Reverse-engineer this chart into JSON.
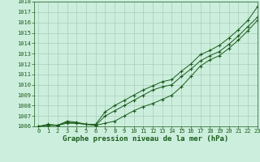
{
  "x": [
    0,
    1,
    2,
    3,
    4,
    5,
    6,
    7,
    8,
    9,
    10,
    11,
    12,
    13,
    14,
    15,
    16,
    17,
    18,
    19,
    20,
    21,
    22,
    23
  ],
  "series1": [
    1006.0,
    1006.1,
    1006.1,
    1006.3,
    1006.3,
    1006.2,
    1006.1,
    1006.3,
    1006.5,
    1007.0,
    1007.5,
    1007.9,
    1008.2,
    1008.6,
    1009.0,
    1009.8,
    1010.8,
    1011.8,
    1012.4,
    1012.8,
    1013.5,
    1014.3,
    1015.2,
    1016.2
  ],
  "series2": [
    1006.0,
    1006.1,
    1006.1,
    1006.4,
    1006.3,
    1006.2,
    1006.1,
    1007.0,
    1007.5,
    1008.0,
    1008.5,
    1009.0,
    1009.5,
    1009.8,
    1010.0,
    1010.8,
    1011.5,
    1012.3,
    1012.8,
    1013.2,
    1013.9,
    1014.7,
    1015.6,
    1016.5
  ],
  "series3": [
    1006.0,
    1006.2,
    1006.1,
    1006.5,
    1006.4,
    1006.2,
    1006.2,
    1007.4,
    1008.0,
    1008.5,
    1009.0,
    1009.5,
    1009.9,
    1010.3,
    1010.5,
    1011.3,
    1012.0,
    1012.9,
    1013.3,
    1013.8,
    1014.5,
    1015.3,
    1016.2,
    1017.5
  ],
  "ylim": [
    1006,
    1018
  ],
  "xlim": [
    -0.5,
    23
  ],
  "yticks": [
    1006,
    1007,
    1008,
    1009,
    1010,
    1011,
    1012,
    1013,
    1014,
    1015,
    1016,
    1017,
    1018
  ],
  "xticks": [
    0,
    1,
    2,
    3,
    4,
    5,
    6,
    7,
    8,
    9,
    10,
    11,
    12,
    13,
    14,
    15,
    16,
    17,
    18,
    19,
    20,
    21,
    22,
    23
  ],
  "line_color": "#1a5c1a",
  "bg_color": "#cceedd",
  "grid_color": "#aaccbb",
  "xlabel": "Graphe pression niveau de la mer (hPa)",
  "xlabel_color": "#1a5c1a",
  "tick_color": "#1a5c1a",
  "label_fontsize": 5.0,
  "xlabel_fontsize": 6.5,
  "marker": "+"
}
